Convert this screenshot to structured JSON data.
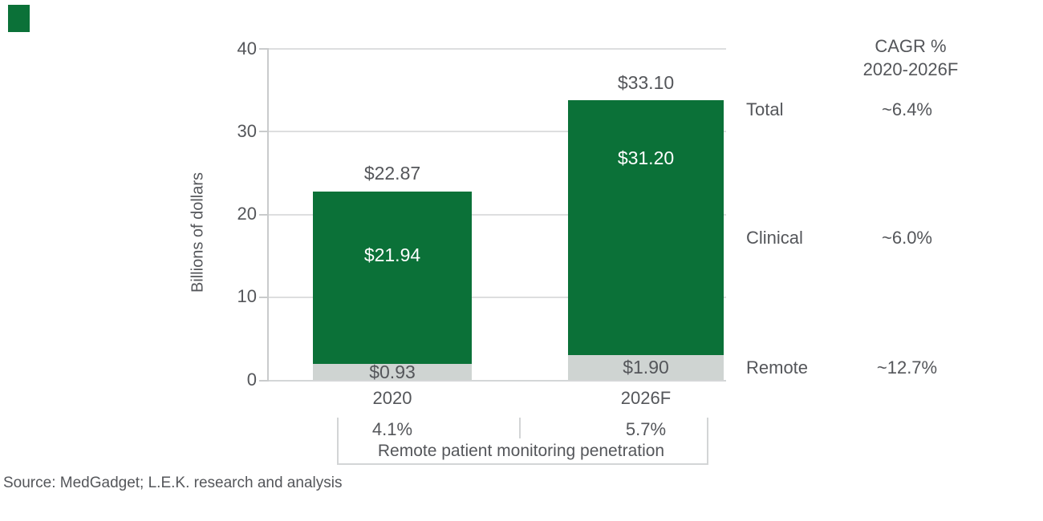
{
  "figure": {
    "source": "Source: MedGadget; L.E.K. research and analysis",
    "colors": {
      "green": "#0B7138",
      "gray_segment": "#CFD4D2",
      "text_gray": "#54565A"
    }
  },
  "chart_data": {
    "type": "bar",
    "stacked": true,
    "title": "",
    "ylabel": "Billions of dollars",
    "xlabel": "",
    "ylim": [
      0,
      40
    ],
    "grid": true,
    "ytick_values": [
      0,
      10,
      20,
      30,
      40
    ],
    "yticks": [
      "0",
      "10",
      "20",
      "30",
      "40"
    ],
    "categories": [
      "2020",
      "2026F"
    ],
    "series": [
      {
        "name": "Clinical",
        "values": [
          21.94,
          31.2
        ],
        "color": "#0B7138",
        "labels": [
          "$21.94",
          "$31.20"
        ]
      },
      {
        "name": "Remote",
        "values": [
          0.93,
          1.9
        ],
        "color": "#CFD4D2",
        "labels": [
          "$0.93",
          "$1.90"
        ]
      }
    ],
    "totals": [
      22.87,
      33.1
    ],
    "total_labels": [
      "$22.87",
      "$33.10"
    ],
    "penetration": {
      "caption": "Remote patient monitoring penetration",
      "values": [
        "4.1%",
        "5.7%"
      ]
    },
    "cagr_panel": {
      "header_line1": "CAGR %",
      "header_line2": "2020-2026F",
      "rows": [
        {
          "label": "Total",
          "value": "~6.4%"
        },
        {
          "label": "Clinical",
          "value": "~6.0%"
        },
        {
          "label": "Remote",
          "value": "~12.7%"
        }
      ]
    }
  }
}
